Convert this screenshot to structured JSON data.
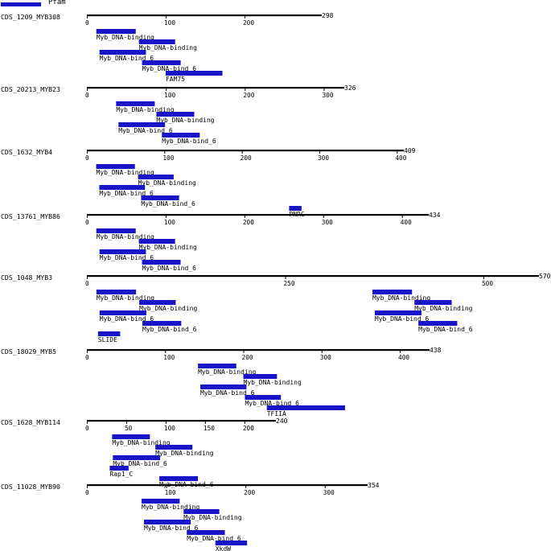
{
  "legend": {
    "label": "Pfam",
    "color": "#1a14c8"
  },
  "proteins": [
    {
      "name": "CDS_1209_MYB308",
      "length": 298,
      "ticks": [
        0,
        100,
        200
      ],
      "domains": [
        {
          "label": "Myb_DNA-binding",
          "start": 12,
          "end": 62
        },
        {
          "label": "Myb_DNA-binding",
          "start": 66,
          "end": 112
        },
        {
          "label": "Myb_DNA-bind_6",
          "start": 16,
          "end": 75
        },
        {
          "label": "Myb_DNA-bind_6",
          "start": 70,
          "end": 119
        },
        {
          "label": "FAM75",
          "start": 100,
          "end": 172
        }
      ]
    },
    {
      "name": "CDS_20213_MYB23",
      "length": 326,
      "ticks": [
        0,
        100,
        200,
        300
      ],
      "domains": [
        {
          "label": "Myb_DNA-binding",
          "start": 37,
          "end": 86
        },
        {
          "label": "Myb_DNA-binding",
          "start": 88,
          "end": 136
        },
        {
          "label": "Myb_DNA-bind_6",
          "start": 40,
          "end": 99
        },
        {
          "label": "Myb_DNA-bind_6",
          "start": 95,
          "end": 143
        }
      ]
    },
    {
      "name": "CDS_1632_MYB4",
      "length": 409,
      "ticks": [
        0,
        100,
        200,
        300,
        400
      ],
      "domains": [
        {
          "label": "Myb_DNA-binding",
          "start": 12,
          "end": 62
        },
        {
          "label": "Myb_DNA-binding",
          "start": 66,
          "end": 112
        },
        {
          "label": "Myb_DNA-bind_6",
          "start": 16,
          "end": 75
        },
        {
          "label": "Myb_DNA-bind_6",
          "start": 70,
          "end": 119
        },
        {
          "label": "PNRC",
          "start": 261,
          "end": 277
        }
      ]
    },
    {
      "name": "CDS_13761_MYB86",
      "length": 434,
      "ticks": [
        0,
        100,
        200,
        300,
        400
      ],
      "domains": [
        {
          "label": "Myb_DNA-binding",
          "start": 12,
          "end": 62
        },
        {
          "label": "Myb_DNA-binding",
          "start": 66,
          "end": 112
        },
        {
          "label": "Myb_DNA-bind_6",
          "start": 16,
          "end": 75
        },
        {
          "label": "Myb_DNA-bind_6",
          "start": 70,
          "end": 119
        }
      ]
    },
    {
      "name": "CDS_1048_MYB3",
      "length": 570,
      "ticks": [
        0,
        250,
        500
      ],
      "domains": [
        {
          "label": "Myb_DNA-binding",
          "start": 12,
          "end": 62
        },
        {
          "label": "Myb_DNA-binding",
          "start": 66,
          "end": 112
        },
        {
          "label": "Myb_DNA-bind_6",
          "start": 16,
          "end": 75
        },
        {
          "label": "Myb_DNA-bind_6",
          "start": 70,
          "end": 119
        },
        {
          "label": "SLIDE",
          "start": 14,
          "end": 42
        },
        {
          "label": "Myb_DNA-binding",
          "start": 360,
          "end": 410
        },
        {
          "label": "Myb_DNA-binding",
          "start": 413,
          "end": 460
        },
        {
          "label": "Myb_DNA-bind_6",
          "start": 363,
          "end": 422
        },
        {
          "label": "Myb_DNA-bind_6",
          "start": 418,
          "end": 467
        }
      ]
    },
    {
      "name": "CDS_18029_MYB5",
      "length": 438,
      "ticks": [
        0,
        100,
        200,
        300,
        400
      ],
      "domains": [
        {
          "label": "Myb_DNA-binding",
          "start": 142,
          "end": 191
        },
        {
          "label": "Myb_DNA-binding",
          "start": 200,
          "end": 243
        },
        {
          "label": "Myb_DNA-bind_6",
          "start": 145,
          "end": 204
        },
        {
          "label": "Myb_DNA-bind_6",
          "start": 202,
          "end": 248
        },
        {
          "label": "TFIIA",
          "start": 230,
          "end": 330
        }
      ]
    },
    {
      "name": "CDS_1628_MYB114",
      "length": 240,
      "ticks": [
        0,
        50,
        100,
        150,
        200
      ],
      "domains": [
        {
          "label": "Myb_DNA-binding",
          "start": 32,
          "end": 80
        },
        {
          "label": "Myb_DNA-binding",
          "start": 87,
          "end": 134
        },
        {
          "label": "Myb_DNA-bind_6",
          "start": 33,
          "end": 93
        },
        {
          "label": "Myb_DNA-bind_6",
          "start": 92,
          "end": 141
        },
        {
          "label": "Rap1_C",
          "start": 29,
          "end": 53
        }
      ]
    },
    {
      "name": "CDS_11028_MYB90",
      "length": 354,
      "ticks": [
        0,
        100,
        200,
        300
      ],
      "domains": [
        {
          "label": "Myb_DNA-binding",
          "start": 69,
          "end": 117
        },
        {
          "label": "Myb_DNA-binding",
          "start": 122,
          "end": 167
        },
        {
          "label": "Myb_DNA-bind_6",
          "start": 72,
          "end": 131
        },
        {
          "label": "Myb_DNA-bind_6",
          "start": 126,
          "end": 174
        },
        {
          "label": "XkdW",
          "start": 162,
          "end": 202
        }
      ]
    }
  ]
}
